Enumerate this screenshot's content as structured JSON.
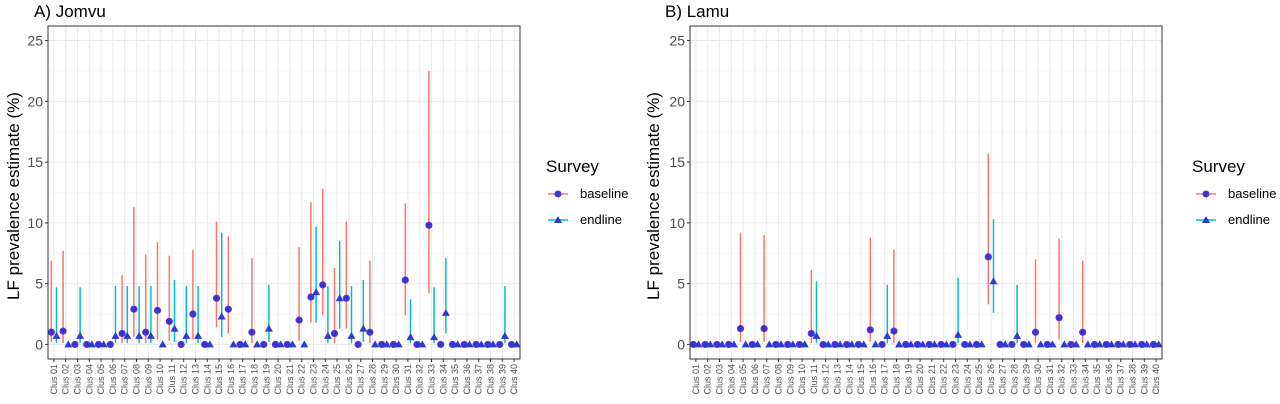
{
  "chart_data": [
    {
      "type": "scatter",
      "title": "A) Jomvu",
      "xlabel": "",
      "ylabel": "LF prevalence estimate (%)",
      "ylim": [
        -1.2,
        26.2
      ],
      "yticks": [
        0,
        5,
        10,
        15,
        20,
        25
      ],
      "grid": true,
      "categories": [
        "Clus 01",
        "Clus 02",
        "Clus 03",
        "Clus 04",
        "Clus 05",
        "Clus 06",
        "Clus 07",
        "Clus 08",
        "Clus 09",
        "Clus 10",
        "Clus 11",
        "Clus 12",
        "Clus 13",
        "Clus 14",
        "Clus 15",
        "Clus 16",
        "Clus 17",
        "Clus 18",
        "Clus 19",
        "Clus 20",
        "Clus 21",
        "Clus 22",
        "Clus 23",
        "Clus 24",
        "Clus 25",
        "Clus 26",
        "Clus 27",
        "Clus 28",
        "Clus 29",
        "Clus 30",
        "Clus 31",
        "Clus 32",
        "Clus 33",
        "Clus 34",
        "Clus 35",
        "Clus 36",
        "Clus 37",
        "Clus 38",
        "Clus 39",
        "Clus 40"
      ],
      "series": [
        {
          "name": "baseline",
          "values": [
            1.0,
            1.1,
            0,
            0,
            0,
            0,
            0.9,
            2.9,
            1.0,
            2.8,
            1.9,
            0,
            2.5,
            0,
            3.8,
            2.9,
            0,
            1.0,
            0,
            0,
            0,
            2.0,
            3.9,
            4.9,
            0.9,
            3.8,
            0,
            1.0,
            0,
            0,
            5.3,
            0,
            9.8,
            0,
            0,
            0,
            0,
            0,
            0,
            0
          ],
          "lower": [
            0.2,
            0.1,
            0,
            0,
            0,
            0,
            0.1,
            0.6,
            0.1,
            0.4,
            0.3,
            0,
            0.4,
            0,
            1.4,
            0.9,
            0,
            0.1,
            0,
            0,
            0,
            0.3,
            1.8,
            2.4,
            0.1,
            1.3,
            0,
            0.1,
            0,
            0,
            2.4,
            0,
            4.2,
            0,
            0,
            0,
            0,
            0,
            0,
            0
          ],
          "upper": [
            6.9,
            7.7,
            0,
            0,
            0,
            0,
            5.7,
            11.3,
            7.4,
            8.4,
            7.3,
            0,
            7.8,
            0,
            10.1,
            8.9,
            0,
            7.1,
            0,
            0,
            0,
            8.0,
            11.7,
            12.8,
            6.3,
            10.1,
            0,
            6.9,
            0,
            0,
            11.6,
            0,
            22.5,
            0,
            0,
            0,
            0,
            0,
            0,
            0
          ]
        },
        {
          "name": "endline",
          "values": [
            0.7,
            0,
            0.7,
            0,
            0,
            0.7,
            0.7,
            0.7,
            0.7,
            0,
            1.3,
            0.7,
            0.7,
            0,
            2.3,
            0,
            0,
            0,
            1.3,
            0,
            0,
            0,
            4.3,
            0.7,
            3.8,
            0.7,
            1.3,
            0,
            0,
            0,
            0.6,
            0,
            0.6,
            2.6,
            0,
            0,
            0,
            0,
            0.7,
            0
          ],
          "lower": [
            0.1,
            0,
            0.1,
            0,
            0,
            0.1,
            0.1,
            0.1,
            0.1,
            0,
            0.2,
            0.1,
            0.1,
            0,
            0.6,
            0,
            0,
            0,
            0.2,
            0,
            0,
            0,
            1.8,
            0.1,
            1.3,
            0.1,
            0.2,
            0,
            0,
            0,
            0.1,
            0,
            0.1,
            0.9,
            0,
            0,
            0,
            0,
            0.1,
            0
          ],
          "upper": [
            4.7,
            0,
            4.7,
            0,
            0,
            4.8,
            4.8,
            4.8,
            4.8,
            0,
            5.3,
            4.8,
            4.8,
            0,
            9.2,
            0,
            0,
            0,
            4.9,
            0,
            0,
            0,
            9.7,
            4.8,
            8.5,
            4.8,
            5.3,
            0,
            0,
            0,
            3.7,
            0,
            4.7,
            7.1,
            0,
            0,
            0,
            0,
            4.8,
            0
          ]
        }
      ]
    },
    {
      "type": "scatter",
      "title": "B) Lamu",
      "xlabel": "",
      "ylabel": "LF prevalence estimate (%)",
      "ylim": [
        -1.2,
        26.2
      ],
      "yticks": [
        0,
        5,
        10,
        15,
        20,
        25
      ],
      "grid": true,
      "categories": [
        "Clus 01",
        "Clus 02",
        "Clus 03",
        "Clus 04",
        "Clus 05",
        "Clus 06",
        "Clus 07",
        "Clus 08",
        "Clus 09",
        "Clus 10",
        "Clus 11",
        "Clus 12",
        "Clus 13",
        "Clus 14",
        "Clus 15",
        "Clus 16",
        "Clus 17",
        "Clus 18",
        "Clus 19",
        "Clus 20",
        "Clus 21",
        "Clus 22",
        "Clus 23",
        "Clus 24",
        "Clus 25",
        "Clus 26",
        "Clus 27",
        "Clus 28",
        "Clus 29",
        "Clus 30",
        "Clus 31",
        "Clus 32",
        "Clus 33",
        "Clus 34",
        "Clus 35",
        "Clus 36",
        "Clus 37",
        "Clus 38",
        "Clus 39",
        "Clus 40"
      ],
      "series": [
        {
          "name": "baseline",
          "values": [
            0,
            0,
            0,
            0,
            1.3,
            0,
            1.3,
            0,
            0,
            0,
            0.9,
            0,
            0,
            0,
            0,
            1.2,
            0,
            1.1,
            0,
            0,
            0,
            0,
            0,
            0,
            0,
            7.2,
            0,
            0,
            0,
            1.0,
            0,
            2.2,
            0,
            1.0,
            0,
            0,
            0,
            0,
            0,
            0
          ],
          "lower": [
            0,
            0,
            0,
            0,
            0.2,
            0,
            0.2,
            0,
            0,
            0,
            0.1,
            0,
            0,
            0,
            0,
            0.2,
            0,
            0.1,
            0,
            0,
            0,
            0,
            0,
            0,
            0,
            3.3,
            0,
            0,
            0,
            0.1,
            0,
            0.4,
            0,
            0.1,
            0,
            0,
            0,
            0,
            0,
            0
          ],
          "upper": [
            0,
            0,
            0,
            0,
            9.2,
            0,
            9.0,
            0,
            0,
            0,
            6.1,
            0,
            0,
            0,
            0,
            8.8,
            0,
            7.8,
            0,
            0,
            0,
            0,
            0,
            0,
            0,
            15.7,
            0,
            0,
            0,
            7.0,
            0,
            8.7,
            0,
            6.9,
            0,
            0,
            0,
            0,
            0,
            0
          ]
        },
        {
          "name": "endline",
          "values": [
            0,
            0,
            0,
            0,
            0,
            0,
            0,
            0,
            0,
            0,
            0.7,
            0,
            0,
            0,
            0,
            0,
            0.7,
            0,
            0,
            0,
            0,
            0,
            0.8,
            0,
            0,
            5.2,
            0,
            0.7,
            0,
            0,
            0,
            0,
            0,
            0,
            0,
            0,
            0,
            0,
            0,
            0
          ],
          "lower": [
            0,
            0,
            0,
            0,
            0,
            0,
            0,
            0,
            0,
            0,
            0.1,
            0,
            0,
            0,
            0,
            0,
            0.1,
            0,
            0,
            0,
            0,
            0,
            0.1,
            0,
            0,
            2.6,
            0,
            0.1,
            0,
            0,
            0,
            0,
            0,
            0,
            0,
            0,
            0,
            0,
            0,
            0
          ],
          "upper": [
            0,
            0,
            0,
            0,
            0,
            0,
            0,
            0,
            0,
            0,
            5.2,
            0,
            0,
            0,
            0,
            0,
            4.9,
            0,
            0,
            0,
            0,
            0,
            5.5,
            0,
            0,
            10.3,
            0,
            4.9,
            0,
            0,
            0,
            0,
            0,
            0,
            0,
            0,
            0,
            0,
            0,
            0
          ]
        }
      ]
    }
  ],
  "legend": {
    "title": "Survey",
    "items": [
      "baseline",
      "endline"
    ]
  },
  "colors": {
    "baseline_line": "#F8766D",
    "endline_line": "#00BFC4",
    "marker_fill": "#2E3ACF",
    "marker_edge": "#6A2BD9",
    "panel_border": "#333333",
    "grid_major": "#EBEBEB",
    "grid_minor": "#F5F5F5"
  }
}
